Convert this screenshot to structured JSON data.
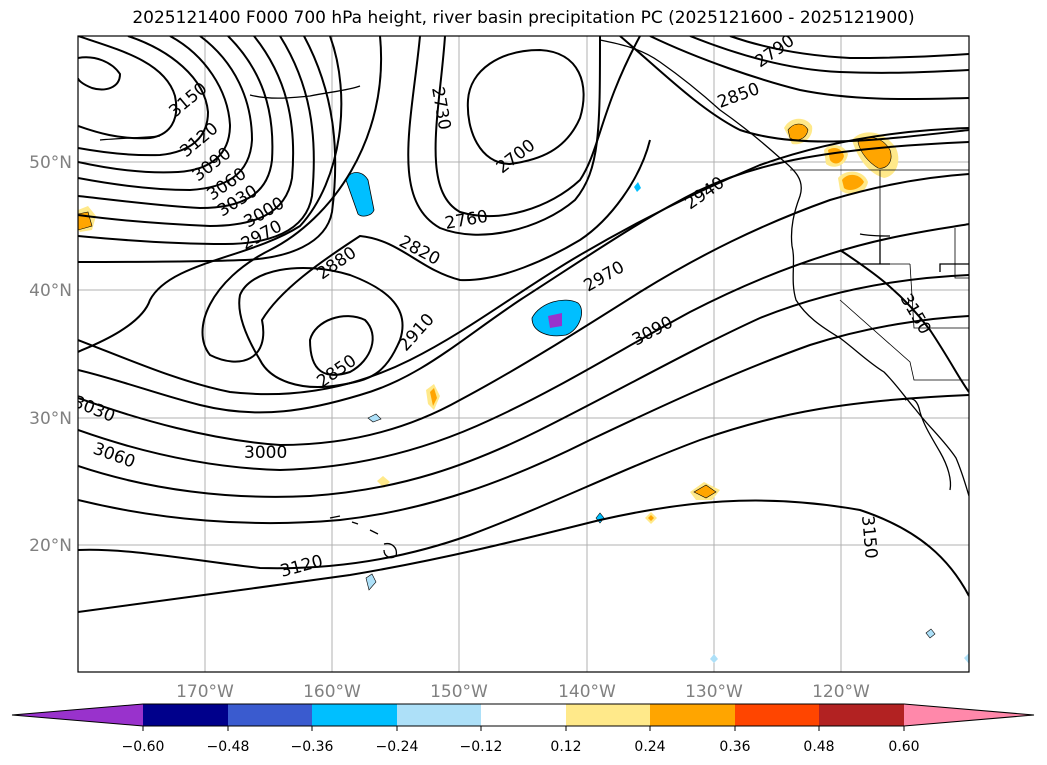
{
  "title": "2025121400 F000 700 hPa height, river basin precipitation PC (2025121600 - 2025121900)",
  "map": {
    "lat_labels": [
      "50°N",
      "40°N",
      "30°N",
      "20°N"
    ],
    "lon_labels": [
      "170°W",
      "160°W",
      "150°W",
      "140°W",
      "130°W",
      "120°W"
    ],
    "contour_labels": [
      "3150",
      "3120",
      "3090",
      "3060",
      "3030",
      "3000",
      "2970",
      "2880",
      "2820",
      "2760",
      "2730",
      "2700",
      "2850",
      "2910",
      "2970",
      "3090",
      "2940",
      "2850",
      "2790",
      "3150",
      "3030",
      "3060",
      "3000",
      "3120",
      "3150"
    ]
  },
  "colorbar": {
    "ticks": [
      "−0.60",
      "−0.48",
      "−0.36",
      "−0.24",
      "−0.12",
      "0.12",
      "0.24",
      "0.36",
      "0.48",
      "0.60"
    ],
    "colors": [
      "#9932CC",
      "#00008B",
      "#3A5BCF",
      "#00BFFF",
      "#ADE0F8",
      "#FFFFFF",
      "#FFE98A",
      "#FFA500",
      "#FF4500",
      "#B22222",
      "#FF88AA"
    ]
  }
}
